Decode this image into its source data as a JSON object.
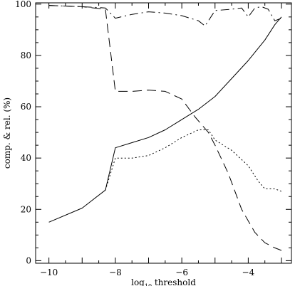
{
  "chart_data": {
    "type": "line",
    "xlabel": "log",
    "xlabel_sub": "10",
    "xlabel_rest": " threshold",
    "ylabel": "comp. & rel. (%)",
    "xlim": [
      -10.4,
      -2.7
    ],
    "ylim": [
      -1,
      100.5
    ],
    "x_ticks": [
      -10,
      -8,
      -6,
      -4
    ],
    "x_tick_labels": [
      "−10",
      "−8",
      "−6",
      "−4"
    ],
    "y_ticks": [
      0,
      20,
      40,
      60,
      80,
      100
    ],
    "y_tick_labels": [
      "0",
      "20",
      "40",
      "60",
      "80",
      "100"
    ],
    "grid": false,
    "series": [
      {
        "style": "solid",
        "x": [
          -10,
          -9,
          -8.3,
          -8,
          -7.5,
          -7,
          -6.5,
          -6,
          -5.5,
          -5,
          -4.5,
          -4,
          -3.5,
          -3.2,
          -3
        ],
        "y": [
          15,
          20.5,
          27.5,
          44,
          46,
          48,
          51,
          55,
          59,
          64,
          71,
          78,
          86,
          92,
          95
        ]
      },
      {
        "style": "dotted",
        "x": [
          -8.3,
          -8,
          -7.5,
          -7,
          -6.5,
          -6,
          -5.5,
          -5.2,
          -5,
          -4.5,
          -4,
          -3.7,
          -3.5,
          -3.2,
          -3
        ],
        "y": [
          27.5,
          40,
          40,
          41,
          44,
          48,
          51,
          51,
          47,
          43,
          37,
          31,
          28,
          28,
          27
        ]
      },
      {
        "style": "dashed",
        "x": [
          -10,
          -9,
          -8.3,
          -8,
          -7.5,
          -7,
          -6.5,
          -6,
          -5.6,
          -5.2,
          -5,
          -4.6,
          -4.2,
          -3.8,
          -3.5,
          -3.2,
          -3
        ],
        "y": [
          99.5,
          99,
          98,
          66,
          66,
          66.5,
          66,
          63,
          56,
          50,
          45,
          34,
          20,
          11,
          7,
          5,
          4
        ]
      },
      {
        "style": "dashdot",
        "x": [
          -10,
          -9,
          -8.3,
          -8,
          -7.5,
          -7,
          -6.5,
          -6,
          -5.5,
          -5.3,
          -5,
          -4.5,
          -4.2,
          -4,
          -3.8,
          -3.6,
          -3.4,
          -3.2,
          -3
        ],
        "y": [
          99.5,
          99,
          98.5,
          94.5,
          96,
          97,
          96.5,
          95.5,
          93.5,
          91.5,
          97.5,
          98,
          98.5,
          95,
          98.5,
          99,
          98,
          93.5,
          94.5
        ]
      }
    ]
  }
}
